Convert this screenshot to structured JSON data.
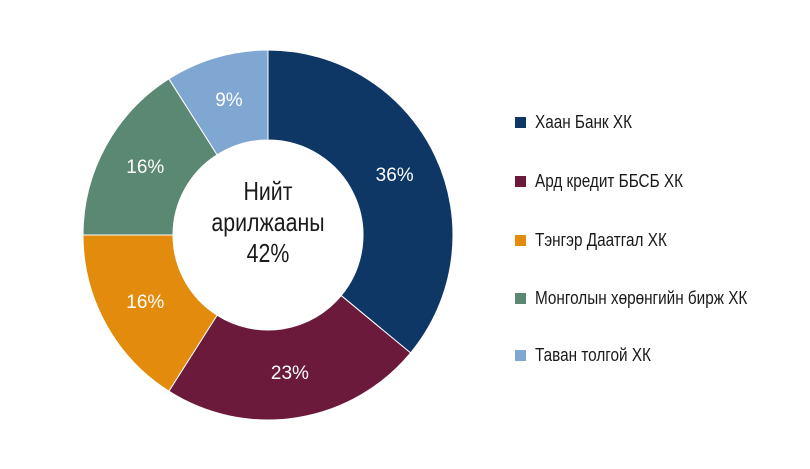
{
  "chart_data": {
    "type": "pie",
    "categories": [
      "Хаан Банк ХК",
      "Ард кредит ББСБ ХК",
      "Тэнгэр Даатгал ХК",
      "Монголын хөрөнгийн бирж ХК",
      "Таван толгой ХК"
    ],
    "values": [
      36,
      23,
      16,
      16,
      9
    ],
    "labels": [
      "36%",
      "23%",
      "16%",
      "16%",
      "9%"
    ],
    "colors": [
      "#0e3766",
      "#6c1a3b",
      "#e38b0c",
      "#5b8872",
      "#7fa7d1"
    ],
    "center_label": [
      "Нийт",
      "арилжааны",
      "42%"
    ],
    "legend_position": "right"
  }
}
